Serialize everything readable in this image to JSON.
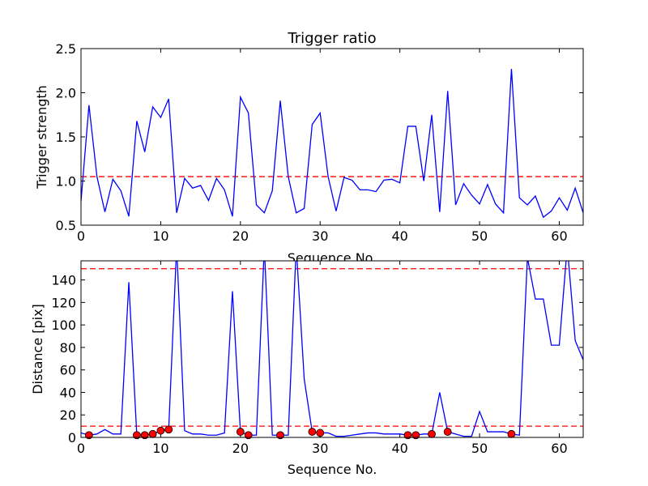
{
  "chart_data": [
    {
      "type": "line",
      "title": "Trigger ratio",
      "xlabel": "Sequence No.",
      "ylabel": "Trigger strength",
      "xlim": [
        0,
        63
      ],
      "ylim": [
        0.5,
        2.5
      ],
      "xticks": [
        0,
        10,
        20,
        30,
        40,
        50,
        60
      ],
      "yticks": [
        0.5,
        1.0,
        1.5,
        2.0,
        2.5
      ],
      "ytick_labels": [
        "0.5",
        "1.0",
        "1.5",
        "2.0",
        "2.5"
      ],
      "threshold": 1.05,
      "line_color": "#0000ff",
      "threshold_color": "#ff0000",
      "x": [
        0,
        1,
        2,
        3,
        4,
        5,
        6,
        7,
        8,
        9,
        10,
        11,
        12,
        13,
        14,
        15,
        16,
        17,
        18,
        19,
        20,
        21,
        22,
        23,
        24,
        25,
        26,
        27,
        28,
        29,
        30,
        31,
        32,
        33,
        34,
        35,
        36,
        37,
        38,
        39,
        40,
        41,
        42,
        43,
        44,
        45,
        46,
        47,
        48,
        49,
        50,
        51,
        52,
        53,
        54,
        55,
        56,
        57,
        58,
        59,
        60,
        61,
        62,
        63
      ],
      "y": [
        0.77,
        1.86,
        1.05,
        0.65,
        1.02,
        0.89,
        0.6,
        1.68,
        1.33,
        1.84,
        1.72,
        1.93,
        0.64,
        1.03,
        0.92,
        0.95,
        0.78,
        1.03,
        0.9,
        0.6,
        1.95,
        1.77,
        0.73,
        0.64,
        0.89,
        1.91,
        1.05,
        0.64,
        0.69,
        1.64,
        1.77,
        1.05,
        0.66,
        1.04,
        1.01,
        0.9,
        0.9,
        0.88,
        1.01,
        1.02,
        0.98,
        1.62,
        1.62,
        1.0,
        1.75,
        0.65,
        2.02,
        0.73,
        0.97,
        0.84,
        0.74,
        0.96,
        0.74,
        0.64,
        2.27,
        0.81,
        0.73,
        0.83,
        0.59,
        0.66,
        0.81,
        0.67,
        0.92,
        0.64
      ]
    },
    {
      "type": "line",
      "title": "",
      "xlabel": "Sequence No.",
      "ylabel": "Distance [pix]",
      "xlim": [
        0,
        63
      ],
      "ylim": [
        0,
        157
      ],
      "xticks": [
        0,
        10,
        20,
        30,
        40,
        50,
        60
      ],
      "yticks": [
        0,
        20,
        40,
        60,
        80,
        100,
        120,
        140
      ],
      "thresholds": [
        10,
        150
      ],
      "line_color": "#0000ff",
      "threshold_color": "#ff0000",
      "marker_color": "#ff0000",
      "x": [
        0,
        1,
        2,
        3,
        4,
        5,
        6,
        7,
        8,
        9,
        10,
        11,
        12,
        13,
        14,
        15,
        16,
        17,
        18,
        19,
        20,
        21,
        22,
        23,
        24,
        25,
        26,
        27,
        28,
        29,
        30,
        31,
        32,
        33,
        34,
        35,
        36,
        37,
        38,
        39,
        40,
        41,
        42,
        43,
        44,
        45,
        46,
        47,
        48,
        49,
        50,
        51,
        52,
        53,
        54,
        55,
        56,
        57,
        58,
        59,
        60,
        61,
        62,
        63
      ],
      "y": [
        4,
        2,
        3,
        7,
        3,
        3,
        138,
        2,
        2,
        3,
        6,
        7,
        170,
        6,
        3,
        3,
        2,
        2,
        4,
        130,
        5,
        2,
        2,
        170,
        2,
        2,
        2,
        170,
        52,
        5,
        4,
        4,
        1,
        1,
        2,
        3,
        4,
        4,
        3,
        3,
        3,
        2,
        2,
        3,
        3,
        40,
        5,
        3,
        1,
        1,
        23,
        5,
        5,
        5,
        3,
        2,
        160,
        123,
        123,
        82,
        82,
        170,
        86,
        69
      ],
      "markers_x": [
        1,
        7,
        8,
        9,
        10,
        11,
        20,
        21,
        25,
        29,
        30,
        41,
        42,
        44,
        46,
        54
      ],
      "markers_y": [
        2,
        2,
        2,
        3,
        6,
        7,
        5,
        2,
        2,
        5,
        4,
        2,
        2,
        3,
        5,
        3
      ]
    }
  ]
}
